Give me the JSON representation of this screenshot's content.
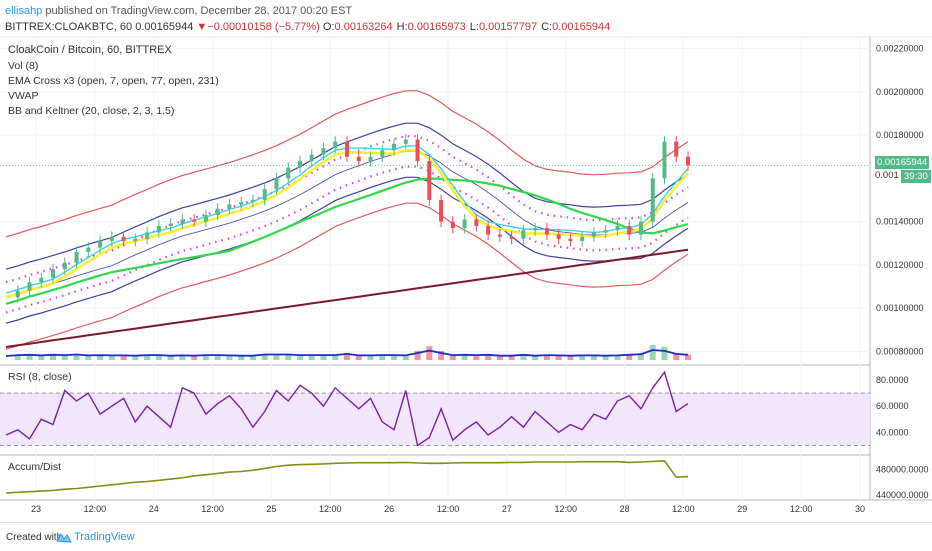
{
  "header": {
    "user": "ellisahp",
    "published": "published on TradingView.com, December 28, 2017 00:20 EST",
    "symbol": "BITTREX:CLOAKBTC, 60",
    "last": "0.00165944",
    "arrow": "▼",
    "change": "−0.00010158 (−5.77%)",
    "o_label": "O:",
    "o_value": "0.00163264",
    "h_label": "H:",
    "h_value": "0.00165973",
    "l_label": "L:",
    "l_value": "0.00157797",
    "c_label": "C:",
    "c_value": "0.00165944"
  },
  "legend": {
    "title": "CloakCoin / Bitcoin, 60, BITTREX",
    "vol": "Vol (8)",
    "ema": "EMA Cross x3 (open, 7, open, 77, open, 231)",
    "vwap": "VWAP",
    "bb": "BB and Keltner (20, close, 2, 3, 1.5)",
    "rsi": "RSI (8, close)",
    "accum": "Accum/Dist"
  },
  "price_tags": {
    "last": "0.00165944",
    "partial": "0.001",
    "countdown": "39:30"
  },
  "footer": {
    "made": "Created with",
    "brand": "TradingView"
  },
  "colors": {
    "up": "#53b987",
    "down": "#eb4d5c",
    "bb_upper": "#e05a5a",
    "keltner": "#3f3f9f",
    "ema_fast": "#38d6e8",
    "ema_mid": "#2ed84a",
    "ema_slow": "#7a1a2a",
    "vwap": "#ffee33",
    "dots": "#e040c8",
    "rsi": "#7b1fa2",
    "accum": "#8a8a14",
    "vol_line": "#1a2fbf"
  },
  "chart_data": [
    {
      "type": "line",
      "title": "CloakCoin / Bitcoin, 60, BITTREX",
      "price_axis_ticks": [
        "0.00220000",
        "0.00200000",
        "0.00180000",
        "0.00140000",
        "0.00120000",
        "0.00100000",
        "0.00080000"
      ],
      "time_axis_ticks": [
        "23",
        "12:00",
        "24",
        "12:00",
        "25",
        "12:00",
        "26",
        "12:00",
        "27",
        "12:00",
        "28",
        "12:00",
        "29",
        "12:00",
        "30"
      ],
      "ylim": [
        0.00076,
        0.00224
      ],
      "series": [
        {
          "name": "CLOAKBTC close",
          "values": [
            0.00105,
            0.00108,
            0.00112,
            0.00114,
            0.00118,
            0.00121,
            0.00126,
            0.00128,
            0.00131,
            0.00133,
            0.00131,
            0.00132,
            0.00135,
            0.00138,
            0.00139,
            0.00141,
            0.0014,
            0.00143,
            0.00146,
            0.00148,
            0.00149,
            0.0015,
            0.00155,
            0.0016,
            0.00165,
            0.00168,
            0.00171,
            0.00174,
            0.00177,
            0.0017,
            0.00168,
            0.0017,
            0.00173,
            0.00176,
            0.00178,
            0.00168,
            0.0015,
            0.0014,
            0.00137,
            0.00141,
            0.00138,
            0.00134,
            0.00133,
            0.00132,
            0.00136,
            0.00137,
            0.00134,
            0.00132,
            0.00131,
            0.00133,
            0.00135,
            0.00136,
            0.00138,
            0.00134,
            0.0014,
            0.0016,
            0.00177,
            0.0017,
            0.00166
          ]
        }
      ]
    },
    {
      "type": "line",
      "title": "RSI (8, close)",
      "ylim": [
        25,
        90
      ],
      "y_ticks": [
        "80.0000",
        "60.0000",
        "40.0000"
      ],
      "series": [
        {
          "name": "RSI",
          "values": [
            38,
            42,
            35,
            50,
            46,
            72,
            64,
            70,
            54,
            60,
            66,
            48,
            60,
            52,
            44,
            74,
            70,
            54,
            62,
            68,
            58,
            44,
            56,
            72,
            64,
            76,
            70,
            60,
            74,
            66,
            58,
            66,
            48,
            42,
            72,
            30,
            36,
            58,
            34,
            42,
            48,
            38,
            44,
            52,
            44,
            56,
            48,
            40,
            46,
            42,
            54,
            50,
            64,
            68,
            58,
            74,
            86,
            56,
            62
          ]
        }
      ]
    },
    {
      "type": "line",
      "title": "Accum/Dist",
      "ylim": [
        435000,
        500000
      ],
      "y_ticks": [
        "480000.0000",
        "440000.0000"
      ],
      "series": [
        {
          "name": "Accum/Dist",
          "values": [
            443000,
            444000,
            445000,
            446000,
            447000,
            449000,
            450000,
            452000,
            454000,
            456000,
            458000,
            460000,
            461000,
            463000,
            465000,
            467000,
            470000,
            472000,
            474000,
            476000,
            477000,
            479000,
            482000,
            485000,
            487000,
            488000,
            488500,
            489000,
            490000,
            490500,
            491000,
            491000,
            491000,
            491000,
            491500,
            490500,
            490000,
            490000,
            490500,
            491000,
            491000,
            491000,
            491000,
            491500,
            491500,
            492000,
            492000,
            492000,
            492000,
            492500,
            492500,
            492500,
            492500,
            491500,
            492000,
            493000,
            494000,
            468000,
            469000
          ]
        }
      ]
    }
  ]
}
